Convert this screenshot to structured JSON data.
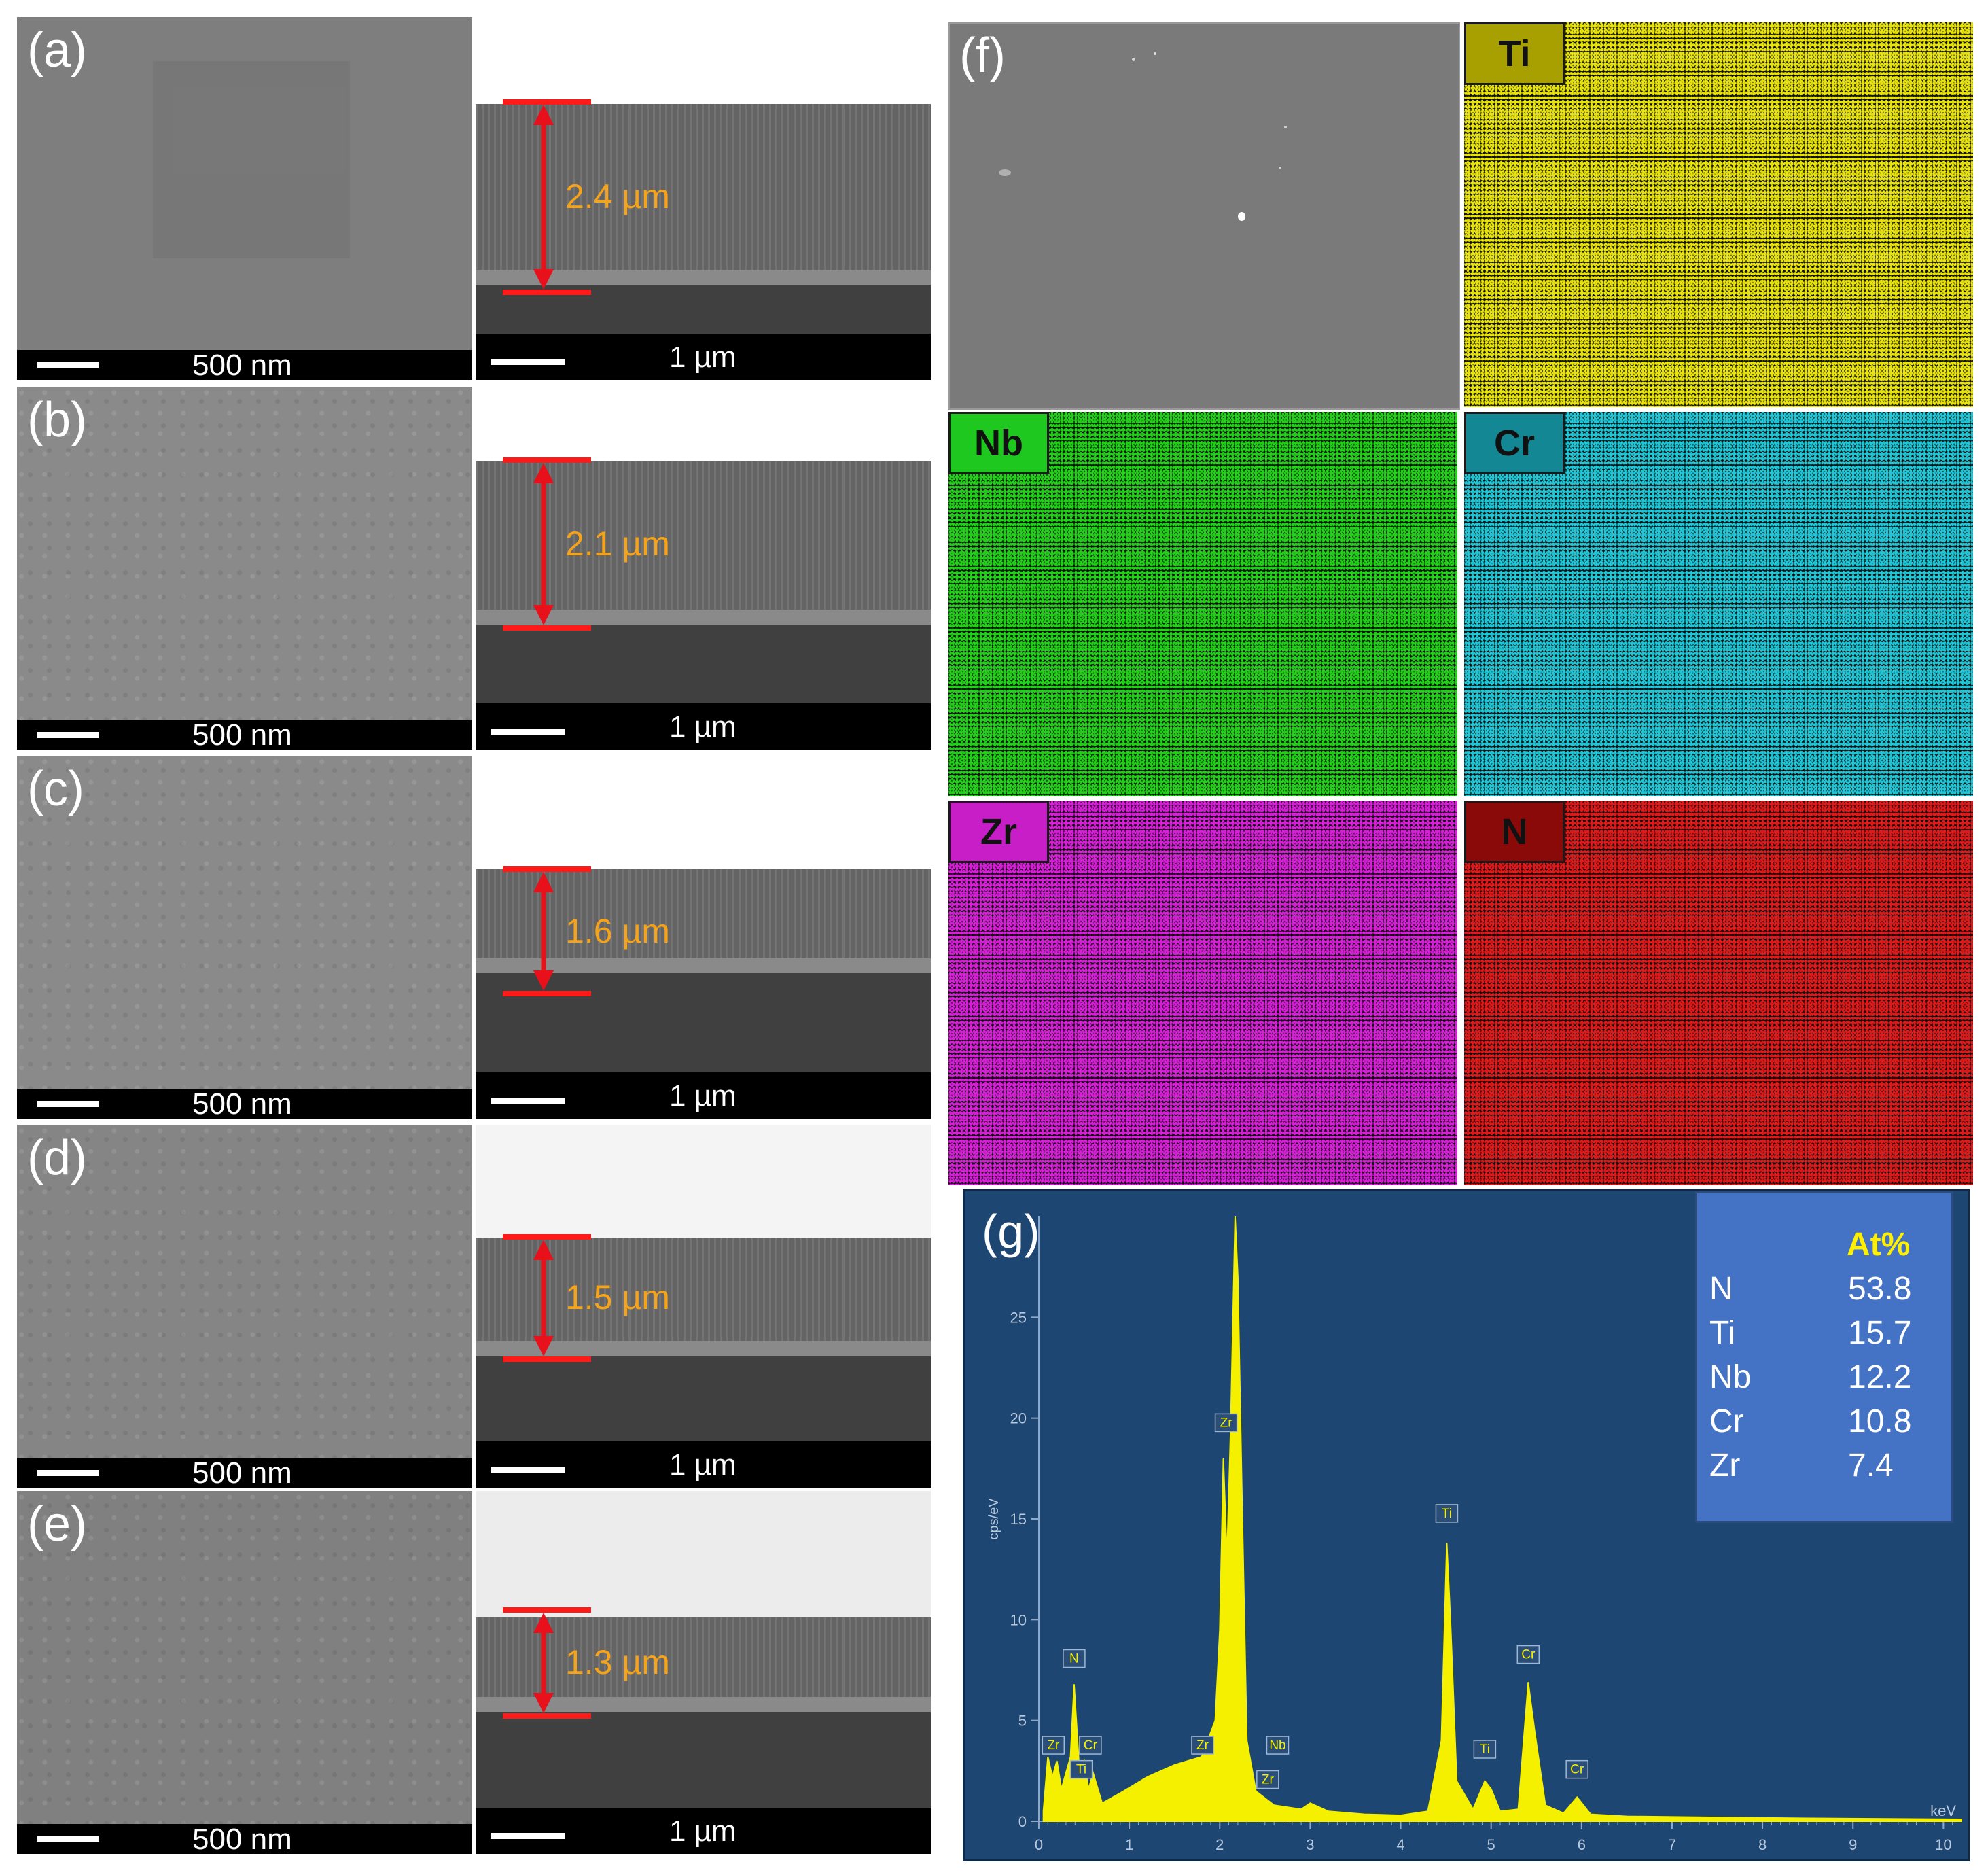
{
  "panels": [
    {
      "letter": "(a)",
      "surface_scale": "500 nm",
      "cross_scale": "1 µm",
      "thickness": "2.4 µm"
    },
    {
      "letter": "(b)",
      "surface_scale": "500 nm",
      "cross_scale": "1 µm",
      "thickness": "2.1 µm"
    },
    {
      "letter": "(c)",
      "surface_scale": "500 nm",
      "cross_scale": "1 µm",
      "thickness": "1.6 µm"
    },
    {
      "letter": "(d)",
      "surface_scale": "500 nm",
      "cross_scale": "1 µm",
      "thickness": "1.5 µm"
    },
    {
      "letter": "(e)",
      "surface_scale": "500 nm",
      "cross_scale": "1 µm",
      "thickness": "1.3 µm"
    }
  ],
  "mapping": {
    "letter": "(f)",
    "elements": [
      {
        "symbol": "Ti",
        "color": "#e8e30a",
        "label_bg": "#a8a000"
      },
      {
        "symbol": "Nb",
        "color": "#22d01a",
        "label_bg": "#1ec81e"
      },
      {
        "symbol": "Cr",
        "color": "#1fc6d6",
        "label_bg": "#138894"
      },
      {
        "symbol": "Zr",
        "color": "#d61fd6",
        "label_bg": "#c81ec8"
      },
      {
        "symbol": "N",
        "color": "#e01a1a",
        "label_bg": "#8a0a0a"
      }
    ]
  },
  "spectrum": {
    "letter": "(g)",
    "ylabel": "cps/eV",
    "xunit": "keV",
    "x_ticks": [
      "0",
      "1",
      "2",
      "3",
      "4",
      "5",
      "6",
      "7",
      "8",
      "9",
      "10"
    ],
    "y_ticks": [
      "0",
      "5",
      "10",
      "15",
      "20",
      "25"
    ],
    "peak_labels": [
      "Zr",
      "Ti",
      "Cr",
      "N",
      "Zr",
      "Zr",
      "Nb",
      "Zr",
      "Nb",
      "Ti",
      "Ti",
      "Cr",
      "Cr"
    ],
    "table_header": "At%",
    "table_rows": [
      {
        "element": "N",
        "value": "53.8"
      },
      {
        "element": "Ti",
        "value": "15.7"
      },
      {
        "element": "Nb",
        "value": "12.2"
      },
      {
        "element": "Cr",
        "value": "10.8"
      },
      {
        "element": "Zr",
        "value": "7.4"
      }
    ]
  },
  "chart_data": {
    "type": "line",
    "title": "",
    "xlabel": "keV",
    "ylabel": "cps/eV",
    "xlim": [
      0,
      10.2
    ],
    "ylim": [
      0,
      30
    ],
    "series": [
      {
        "x": [
          0.05,
          0.1,
          0.15,
          0.2,
          0.25,
          0.3,
          0.35,
          0.39,
          0.45,
          0.5,
          0.55,
          0.6,
          0.7,
          0.9,
          1.2,
          1.5,
          1.8,
          1.95,
          2.0,
          2.04,
          2.08,
          2.12,
          2.17,
          2.2,
          2.25,
          2.3,
          2.4,
          2.6,
          2.9,
          3.0,
          3.2,
          3.6,
          4.0,
          4.3,
          4.45,
          4.51,
          4.55,
          4.62,
          4.8,
          4.93,
          5.0,
          5.1,
          5.3,
          5.41,
          5.48,
          5.6,
          5.8,
          5.95,
          6.1,
          6.5,
          7.5,
          8.5,
          9.5,
          10.2
        ],
        "y": [
          0.5,
          3.2,
          2.2,
          3.0,
          1.6,
          2.4,
          3.2,
          6.8,
          2.4,
          3.0,
          1.6,
          2.4,
          0.9,
          1.4,
          2.2,
          2.8,
          3.2,
          5.0,
          9.5,
          18.0,
          13.0,
          19.5,
          31.0,
          27.0,
          15.0,
          4.0,
          1.5,
          0.8,
          0.6,
          0.9,
          0.5,
          0.35,
          0.3,
          0.5,
          4.0,
          13.8,
          10.0,
          2.0,
          0.6,
          2.0,
          1.6,
          0.5,
          0.6,
          6.9,
          4.5,
          0.8,
          0.4,
          1.2,
          0.35,
          0.25,
          0.2,
          0.15,
          0.12,
          0.1
        ]
      }
    ]
  }
}
